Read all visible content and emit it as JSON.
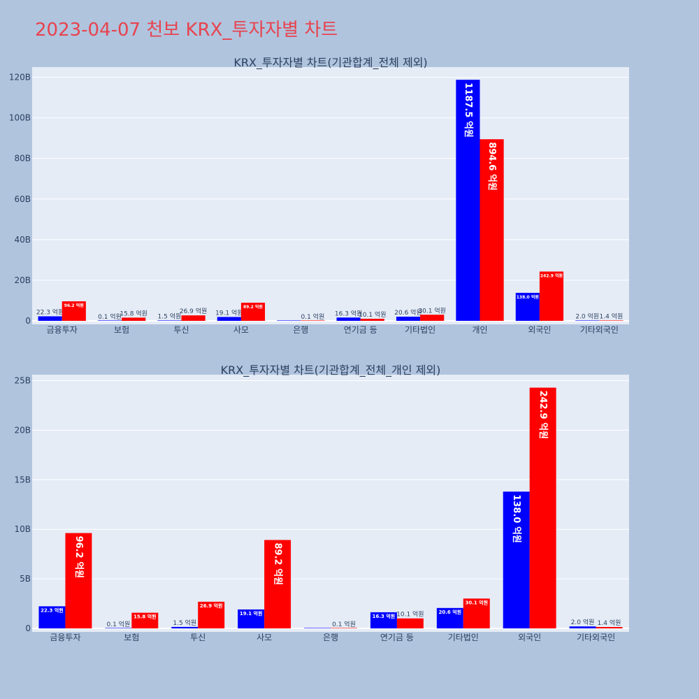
{
  "title": "2023-04-07 천보 KRX_투자자별 차트",
  "colors": {
    "buy": "#0000ff",
    "sell": "#ff0000",
    "plot_bg": "#e5ecf6",
    "paper_bg": "#b0c4de",
    "title": "#e8434e"
  },
  "chart_data": [
    {
      "type": "bar",
      "title": "KRX_투자자별 차트(기관합계_전체 제외)",
      "categories": [
        "금융투자",
        "보험",
        "투신",
        "사모",
        "은행",
        "연기금 등",
        "기타법인",
        "개인",
        "외국인",
        "기타외국인"
      ],
      "series": [
        {
          "values": [
            2230000000,
            10000000,
            150000000,
            1910000000,
            0,
            1630000000,
            2060000000,
            118750000000,
            13800000000,
            200000000
          ]
        },
        {
          "values": [
            9620000000,
            1580000000,
            2690000000,
            8920000000,
            10000000,
            1010000000,
            3010000000,
            89460000000,
            24290000000,
            140000000
          ]
        }
      ],
      "labels": [
        [
          "22.3 억원",
          "0.1 억원",
          "1.5 억원",
          "19.1 억원",
          "",
          "16.3 억원",
          "20.6 억원",
          "1187.5 억원",
          "138.0 억원",
          "2.0 억원"
        ],
        [
          "96.2 억원",
          "15.8 억원",
          "26.9 억원",
          "89.2 억원",
          "0.1 억원",
          "10.1 억원",
          "30.1 억원",
          "894.6 억원",
          "242.9 억원",
          "1.4 억원"
        ]
      ],
      "ylim": [
        0,
        125000000000
      ],
      "yticks": [
        0,
        20000000000,
        40000000000,
        60000000000,
        80000000000,
        100000000000,
        120000000000
      ],
      "yticklabels": [
        "0",
        "20B",
        "40B",
        "60B",
        "80B",
        "100B",
        "120B"
      ],
      "grid": true
    },
    {
      "type": "bar",
      "title": "KRX_투자자별 차트(기관합계_전체_개인 제외)",
      "categories": [
        "금융투자",
        "보험",
        "투신",
        "사모",
        "은행",
        "연기금 등",
        "기타법인",
        "외국인",
        "기타외국인"
      ],
      "series": [
        {
          "values": [
            2230000000,
            10000000,
            150000000,
            1910000000,
            0,
            1630000000,
            2060000000,
            13800000000,
            200000000
          ]
        },
        {
          "values": [
            9620000000,
            1580000000,
            2690000000,
            8920000000,
            10000000,
            1010000000,
            3010000000,
            24290000000,
            140000000
          ]
        }
      ],
      "labels": [
        [
          "22.3 억원",
          "0.1 억원",
          "1.5 억원",
          "19.1 억원",
          "",
          "16.3 억원",
          "20.6 억원",
          "138.0 억원",
          "2.0 억원"
        ],
        [
          "96.2 억원",
          "15.8 억원",
          "26.9 억원",
          "89.2 억원",
          "0.1 억원",
          "10.1 억원",
          "30.1 억원",
          "242.9 억원",
          "1.4 억원"
        ]
      ],
      "ylim": [
        0,
        25600000000
      ],
      "yticks": [
        0,
        5000000000,
        10000000000,
        15000000000,
        20000000000,
        25000000000
      ],
      "yticklabels": [
        "0",
        "5B",
        "10B",
        "15B",
        "20B",
        "25B"
      ],
      "grid": true
    }
  ]
}
